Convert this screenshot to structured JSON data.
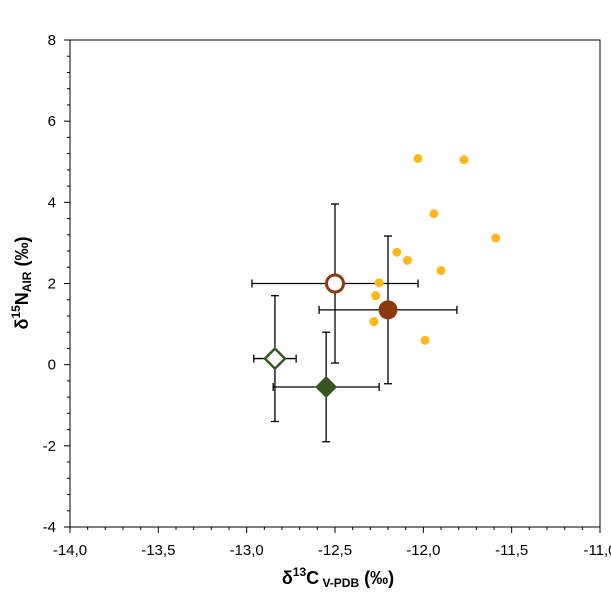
{
  "chart_data": {
    "type": "scatter",
    "title": "",
    "xlabel": {
      "prefix": "δ",
      "sup": "13",
      "main": "C",
      "sub": " V-PDB",
      "suffix": " (‰)"
    },
    "ylabel": {
      "prefix": "δ",
      "sup": "15",
      "main": "N",
      "sub": "AIR",
      "suffix": " (‰)"
    },
    "xlim": [
      -14.0,
      -11.0
    ],
    "ylim": [
      -4,
      8
    ],
    "x_ticks": [
      -14.0,
      -13.5,
      -13.0,
      -12.5,
      -12.0,
      -11.5,
      -11.0
    ],
    "x_tick_labels": [
      "-14,0",
      "-13,5",
      "-13,0",
      "-12,5",
      "-12,0",
      "-11,5",
      "-11,0"
    ],
    "y_ticks": [
      -4,
      -2,
      0,
      2,
      4,
      6,
      8
    ],
    "y_tick_labels": [
      "-4",
      "-2",
      "0",
      "2",
      "4",
      "6",
      "8"
    ],
    "grid": false,
    "colors": {
      "individuals": "#FFB81C",
      "brown": "#8B3A0E",
      "green": "#375623",
      "errorbar": "#000000",
      "axis": "#000000"
    },
    "series": [
      {
        "name": "individual samples",
        "marker": "circle-small",
        "color": "#FFB81C",
        "points": [
          {
            "x": -12.03,
            "y": 5.08
          },
          {
            "x": -11.77,
            "y": 5.05
          },
          {
            "x": -11.94,
            "y": 3.72
          },
          {
            "x": -11.59,
            "y": 3.12
          },
          {
            "x": -12.15,
            "y": 2.77
          },
          {
            "x": -12.09,
            "y": 2.57
          },
          {
            "x": -11.9,
            "y": 2.32
          },
          {
            "x": -12.25,
            "y": 2.02
          },
          {
            "x": -12.27,
            "y": 1.7
          },
          {
            "x": -12.28,
            "y": 1.06
          },
          {
            "x": -11.99,
            "y": 0.6
          }
        ]
      },
      {
        "name": "mean open circle",
        "marker": "circle-open",
        "color": "#8B3A0E",
        "points": [
          {
            "x": -12.5,
            "y": 2.0,
            "xerr": 0.47,
            "yerr": 1.96
          }
        ]
      },
      {
        "name": "mean filled circle",
        "marker": "circle-filled",
        "color": "#8B3A0E",
        "points": [
          {
            "x": -12.2,
            "y": 1.35,
            "xerr": 0.39,
            "yerr": 1.82
          }
        ]
      },
      {
        "name": "mean open diamond",
        "marker": "diamond-open",
        "color": "#375623",
        "points": [
          {
            "x": -12.84,
            "y": 0.15,
            "xerr": 0.12,
            "yerr": 1.55
          }
        ]
      },
      {
        "name": "mean filled diamond",
        "marker": "diamond-filled",
        "color": "#375623",
        "points": [
          {
            "x": -12.55,
            "y": -0.55,
            "xerr": 0.3,
            "yerr": 1.35
          }
        ]
      }
    ]
  }
}
